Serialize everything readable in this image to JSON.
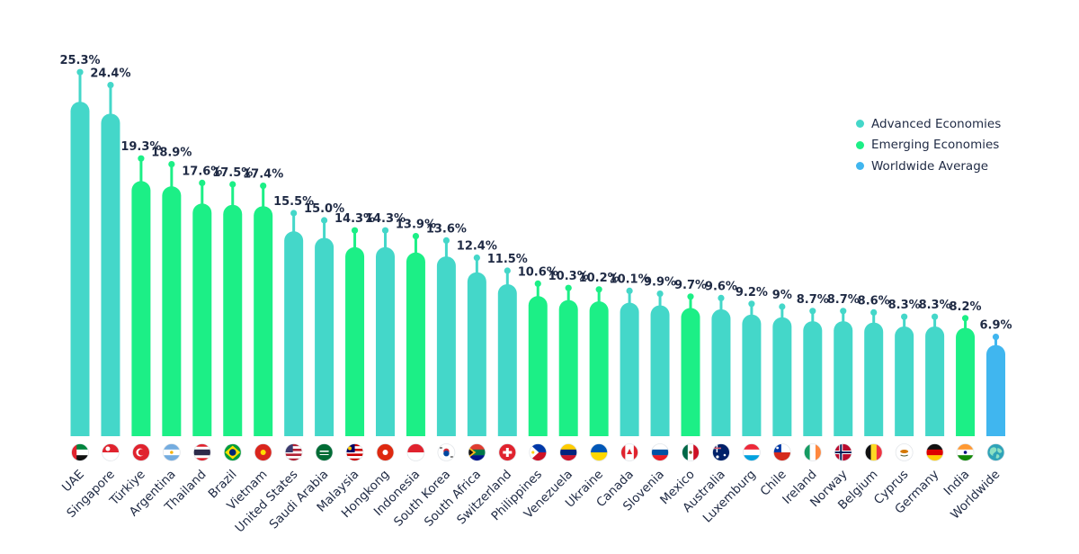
{
  "colors": {
    "advanced": "#44d7c9",
    "emerging": "#1cef86",
    "worldwide": "#40b6ef",
    "text": "#1f2a44"
  },
  "legend": [
    {
      "label": "Advanced Economies",
      "group": "advanced"
    },
    {
      "label": "Emerging Economies",
      "group": "emerging"
    },
    {
      "label": "Worldwide Average",
      "group": "worldwide"
    }
  ],
  "chart_data": {
    "type": "bar",
    "title": "",
    "xlabel": "",
    "ylabel": "",
    "ylim": [
      0,
      27
    ],
    "grid": false,
    "legend_position": "top-right",
    "unit": "%",
    "categories": [
      "UAE",
      "Singapore",
      "Türkiye",
      "Argentina",
      "Thailand",
      "Brazil",
      "Vietnam",
      "United States",
      "Saudi Arabia",
      "Malaysia",
      "Hongkong",
      "Indonesia",
      "South Korea",
      "South Africa",
      "Switzerland",
      "Philippines",
      "Venezuela",
      "Ukraine",
      "Canada",
      "Slovenia",
      "Mexico",
      "Australia",
      "Luxemburg",
      "Chile",
      "Ireland",
      "Norway",
      "Belgium",
      "Cyprus",
      "Germany",
      "India",
      "Worldwide"
    ],
    "values": [
      25.3,
      24.4,
      19.3,
      18.9,
      17.6,
      17.5,
      17.4,
      15.5,
      15.0,
      14.3,
      14.3,
      13.9,
      13.6,
      12.4,
      11.5,
      10.6,
      10.3,
      10.2,
      10.1,
      9.9,
      9.7,
      9.6,
      9.2,
      9,
      8.7,
      8.7,
      8.6,
      8.3,
      8.3,
      8.2,
      6.9
    ],
    "value_labels": [
      "25.3%",
      "24.4%",
      "19.3%",
      "18.9%",
      "17.6%",
      "17.5%",
      "17.4%",
      "15.5%",
      "15.0%",
      "14.3%",
      "14.3%",
      "13.9%",
      "13.6%",
      "12.4%",
      "11.5%",
      "10.6%",
      "10.3%",
      "10.2%",
      "10.1%",
      "9.9%",
      "9.7%",
      "9.6%",
      "9.2%",
      "9%",
      "8.7%",
      "8.7%",
      "8.6%",
      "8.3%",
      "8.3%",
      "8.2%",
      "6.9%"
    ],
    "groups": [
      "advanced",
      "advanced",
      "emerging",
      "emerging",
      "emerging",
      "emerging",
      "emerging",
      "advanced",
      "advanced",
      "emerging",
      "advanced",
      "emerging",
      "advanced",
      "advanced",
      "advanced",
      "emerging",
      "emerging",
      "emerging",
      "advanced",
      "advanced",
      "emerging",
      "advanced",
      "advanced",
      "advanced",
      "advanced",
      "advanced",
      "advanced",
      "advanced",
      "advanced",
      "emerging",
      "worldwide"
    ],
    "flags": [
      "flag-uae-icon",
      "flag-singapore-icon",
      "flag-turkiye-icon",
      "flag-argentina-icon",
      "flag-thailand-icon",
      "flag-brazil-icon",
      "flag-vietnam-icon",
      "flag-united-states-icon",
      "flag-saudi-arabia-icon",
      "flag-malaysia-icon",
      "flag-hongkong-icon",
      "flag-indonesia-icon",
      "flag-south-korea-icon",
      "flag-south-africa-icon",
      "flag-switzerland-icon",
      "flag-philippines-icon",
      "flag-venezuela-icon",
      "flag-ukraine-icon",
      "flag-canada-icon",
      "flag-slovenia-icon",
      "flag-mexico-icon",
      "flag-australia-icon",
      "flag-luxemburg-icon",
      "flag-chile-icon",
      "flag-ireland-icon",
      "flag-norway-icon",
      "flag-belgium-icon",
      "flag-cyprus-icon",
      "flag-germany-icon",
      "flag-india-icon",
      "globe-icon"
    ]
  }
}
